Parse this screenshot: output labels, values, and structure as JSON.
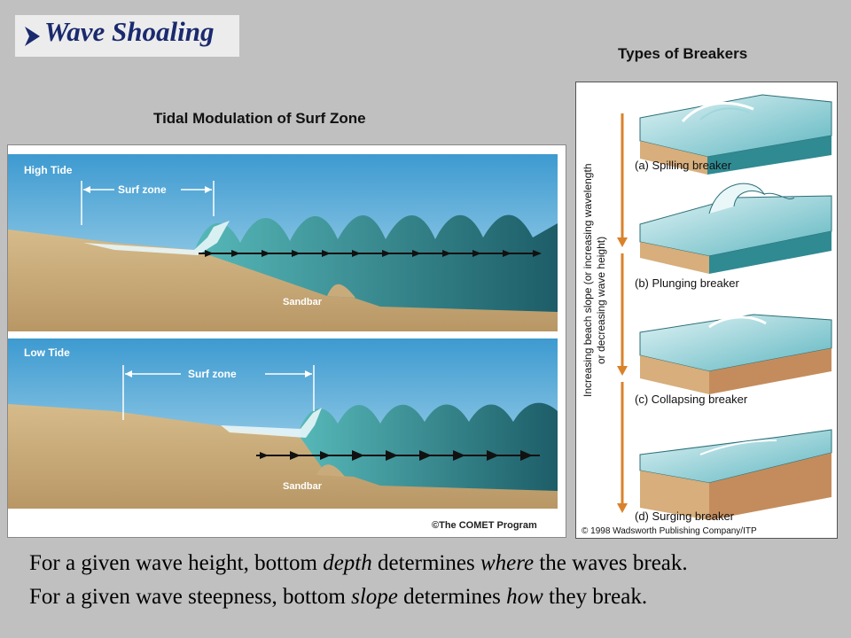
{
  "slide": {
    "title": "Wave Shoaling",
    "types_heading": "Types of Breakers",
    "tidal_heading": "Tidal Modulation of Surf Zone"
  },
  "tidal_diagram": {
    "high_tide_label": "High Tide",
    "low_tide_label": "Low Tide",
    "surf_zone_label": "Surf zone",
    "sandbar_label": "Sandbar",
    "credit": "©The COMET Program"
  },
  "breakers_diagram": {
    "axis_label_line1": "Increasing beach slope (or increasing wavelength",
    "axis_label_line2": "or decreasing wave height)",
    "breakers": [
      {
        "label": "(a) Spilling breaker"
      },
      {
        "label": "(b) Plunging breaker"
      },
      {
        "label": "(c) Collapsing breaker"
      },
      {
        "label": "(d) Surging breaker"
      }
    ],
    "credit": "© 1998 Wadsworth Publishing Company/ITP"
  },
  "caption": {
    "line1": [
      {
        "text": "For a given wave height, bottom ",
        "italic": false
      },
      {
        "text": "depth",
        "italic": true
      },
      {
        "text": " determines ",
        "italic": false
      },
      {
        "text": "where",
        "italic": true
      },
      {
        "text": " the waves break.",
        "italic": false
      }
    ],
    "line2": [
      {
        "text": "For a given wave steepness, bottom ",
        "italic": false
      },
      {
        "text": "slope",
        "italic": true
      },
      {
        "text": " determines ",
        "italic": false
      },
      {
        "text": "how",
        "italic": true
      },
      {
        "text": " they break.",
        "italic": false
      }
    ]
  },
  "colors": {
    "background": "#c0c0c0",
    "title": "#1a2a6e",
    "sky": "#4aa7d6",
    "water": "#2f8a92",
    "sand": "#c9ab7b",
    "arrow": "#d9822b"
  }
}
